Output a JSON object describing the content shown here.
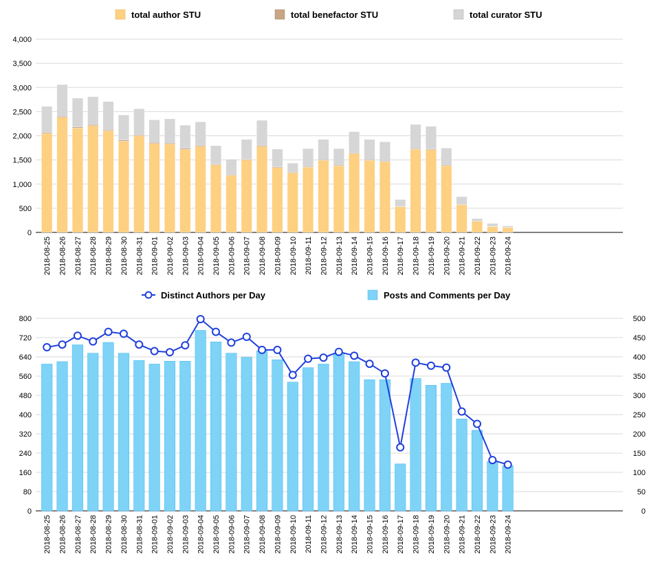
{
  "chart_data": [
    {
      "type": "bar",
      "stacked": true,
      "categories": [
        "2018-08-25",
        "2018-08-26",
        "2018-08-27",
        "2018-08-28",
        "2018-08-29",
        "2018-08-30",
        "2018-08-31",
        "2018-09-01",
        "2018-09-02",
        "2018-09-03",
        "2018-09-04",
        "2018-09-05",
        "2018-09-06",
        "2018-09-07",
        "2018-09-08",
        "2018-09-09",
        "2018-09-10",
        "2018-09-11",
        "2018-09-12",
        "2018-09-13",
        "2018-09-14",
        "2018-09-15",
        "2018-09-16",
        "2018-09-17",
        "2018-09-18",
        "2018-09-19",
        "2018-09-20",
        "2018-09-21",
        "2018-09-22",
        "2018-09-23",
        "2018-09-24"
      ],
      "series": [
        {
          "name": "total author STU",
          "color": "#fdd082",
          "values": [
            2050,
            2380,
            2160,
            2210,
            2100,
            1890,
            2000,
            1840,
            1830,
            1720,
            1780,
            1400,
            1180,
            1500,
            1780,
            1340,
            1230,
            1350,
            1490,
            1380,
            1630,
            1490,
            1460,
            530,
            1720,
            1710,
            1380,
            570,
            230,
            120,
            100
          ]
        },
        {
          "name": "total benefactor STU",
          "color": "#c7a585",
          "values": [
            20,
            20,
            20,
            20,
            20,
            20,
            20,
            20,
            20,
            20,
            20,
            15,
            15,
            15,
            20,
            15,
            15,
            15,
            15,
            15,
            15,
            15,
            15,
            10,
            15,
            15,
            15,
            10,
            5,
            5,
            5
          ]
        },
        {
          "name": "total curator STU",
          "color": "#d6d6d6",
          "values": [
            540,
            660,
            600,
            580,
            590,
            520,
            540,
            470,
            500,
            480,
            490,
            380,
            320,
            410,
            520,
            370,
            190,
            370,
            420,
            340,
            440,
            420,
            400,
            140,
            500,
            470,
            350,
            160,
            50,
            60,
            30
          ]
        }
      ],
      "ylim": [
        0,
        4000
      ],
      "yticks": [
        0,
        500,
        1000,
        1500,
        2000,
        2500,
        3000,
        3500,
        4000
      ],
      "ytick_labels": [
        "0",
        "500",
        "1,000",
        "1,500",
        "2,000",
        "2,500",
        "3,000",
        "3,500",
        "4,000"
      ],
      "title": "",
      "xlabel": "",
      "ylabel": "",
      "legend": "top-center"
    },
    {
      "type": "bar+line",
      "categories": [
        "2018-08-25",
        "2018-08-26",
        "2018-08-27",
        "2018-08-28",
        "2018-08-29",
        "2018-08-30",
        "2018-08-31",
        "2018-09-01",
        "2018-09-02",
        "2018-09-03",
        "2018-09-04",
        "2018-09-05",
        "2018-09-06",
        "2018-09-07",
        "2018-09-08",
        "2018-09-09",
        "2018-09-10",
        "2018-09-11",
        "2018-09-12",
        "2018-09-13",
        "2018-09-14",
        "2018-09-15",
        "2018-09-16",
        "2018-09-17",
        "2018-09-18",
        "2018-09-19",
        "2018-09-20",
        "2018-09-21",
        "2018-09-22",
        "2018-09-23",
        "2018-09-24"
      ],
      "bar_series": {
        "name": "Posts and Comments per Day",
        "color": "#7fd3f7",
        "axis": "left",
        "values": [
          610,
          620,
          690,
          655,
          700,
          655,
          625,
          610,
          622,
          622,
          750,
          702,
          655,
          638,
          665,
          628,
          535,
          595,
          610,
          655,
          620,
          545,
          545,
          195,
          550,
          522,
          530,
          382,
          335,
          205,
          188
        ]
      },
      "line_series": {
        "name": "Distinct Authors per Day",
        "color": "#1f3fdb",
        "axis": "right",
        "values": [
          425,
          432,
          455,
          440,
          465,
          460,
          432,
          415,
          412,
          430,
          498,
          465,
          437,
          452,
          418,
          418,
          353,
          395,
          398,
          413,
          403,
          382,
          357,
          165,
          385,
          377,
          372,
          258,
          226,
          132,
          120
        ]
      },
      "y_left": {
        "lim": [
          0,
          800
        ],
        "ticks": [
          0,
          80,
          160,
          240,
          320,
          400,
          480,
          560,
          640,
          720,
          800
        ],
        "tick_labels": [
          "0",
          "80",
          "160",
          "240",
          "320",
          "400",
          "480",
          "560",
          "640",
          "720",
          "800"
        ]
      },
      "y_right": {
        "lim": [
          0,
          500
        ],
        "ticks": [
          0,
          50,
          100,
          150,
          200,
          250,
          300,
          350,
          400,
          450,
          500
        ],
        "tick_labels": [
          "0",
          "50",
          "100",
          "150",
          "200",
          "250",
          "300",
          "350",
          "400",
          "450",
          "500"
        ]
      },
      "title": "",
      "xlabel": "",
      "ylabel": "",
      "legend": "top-center"
    }
  ]
}
